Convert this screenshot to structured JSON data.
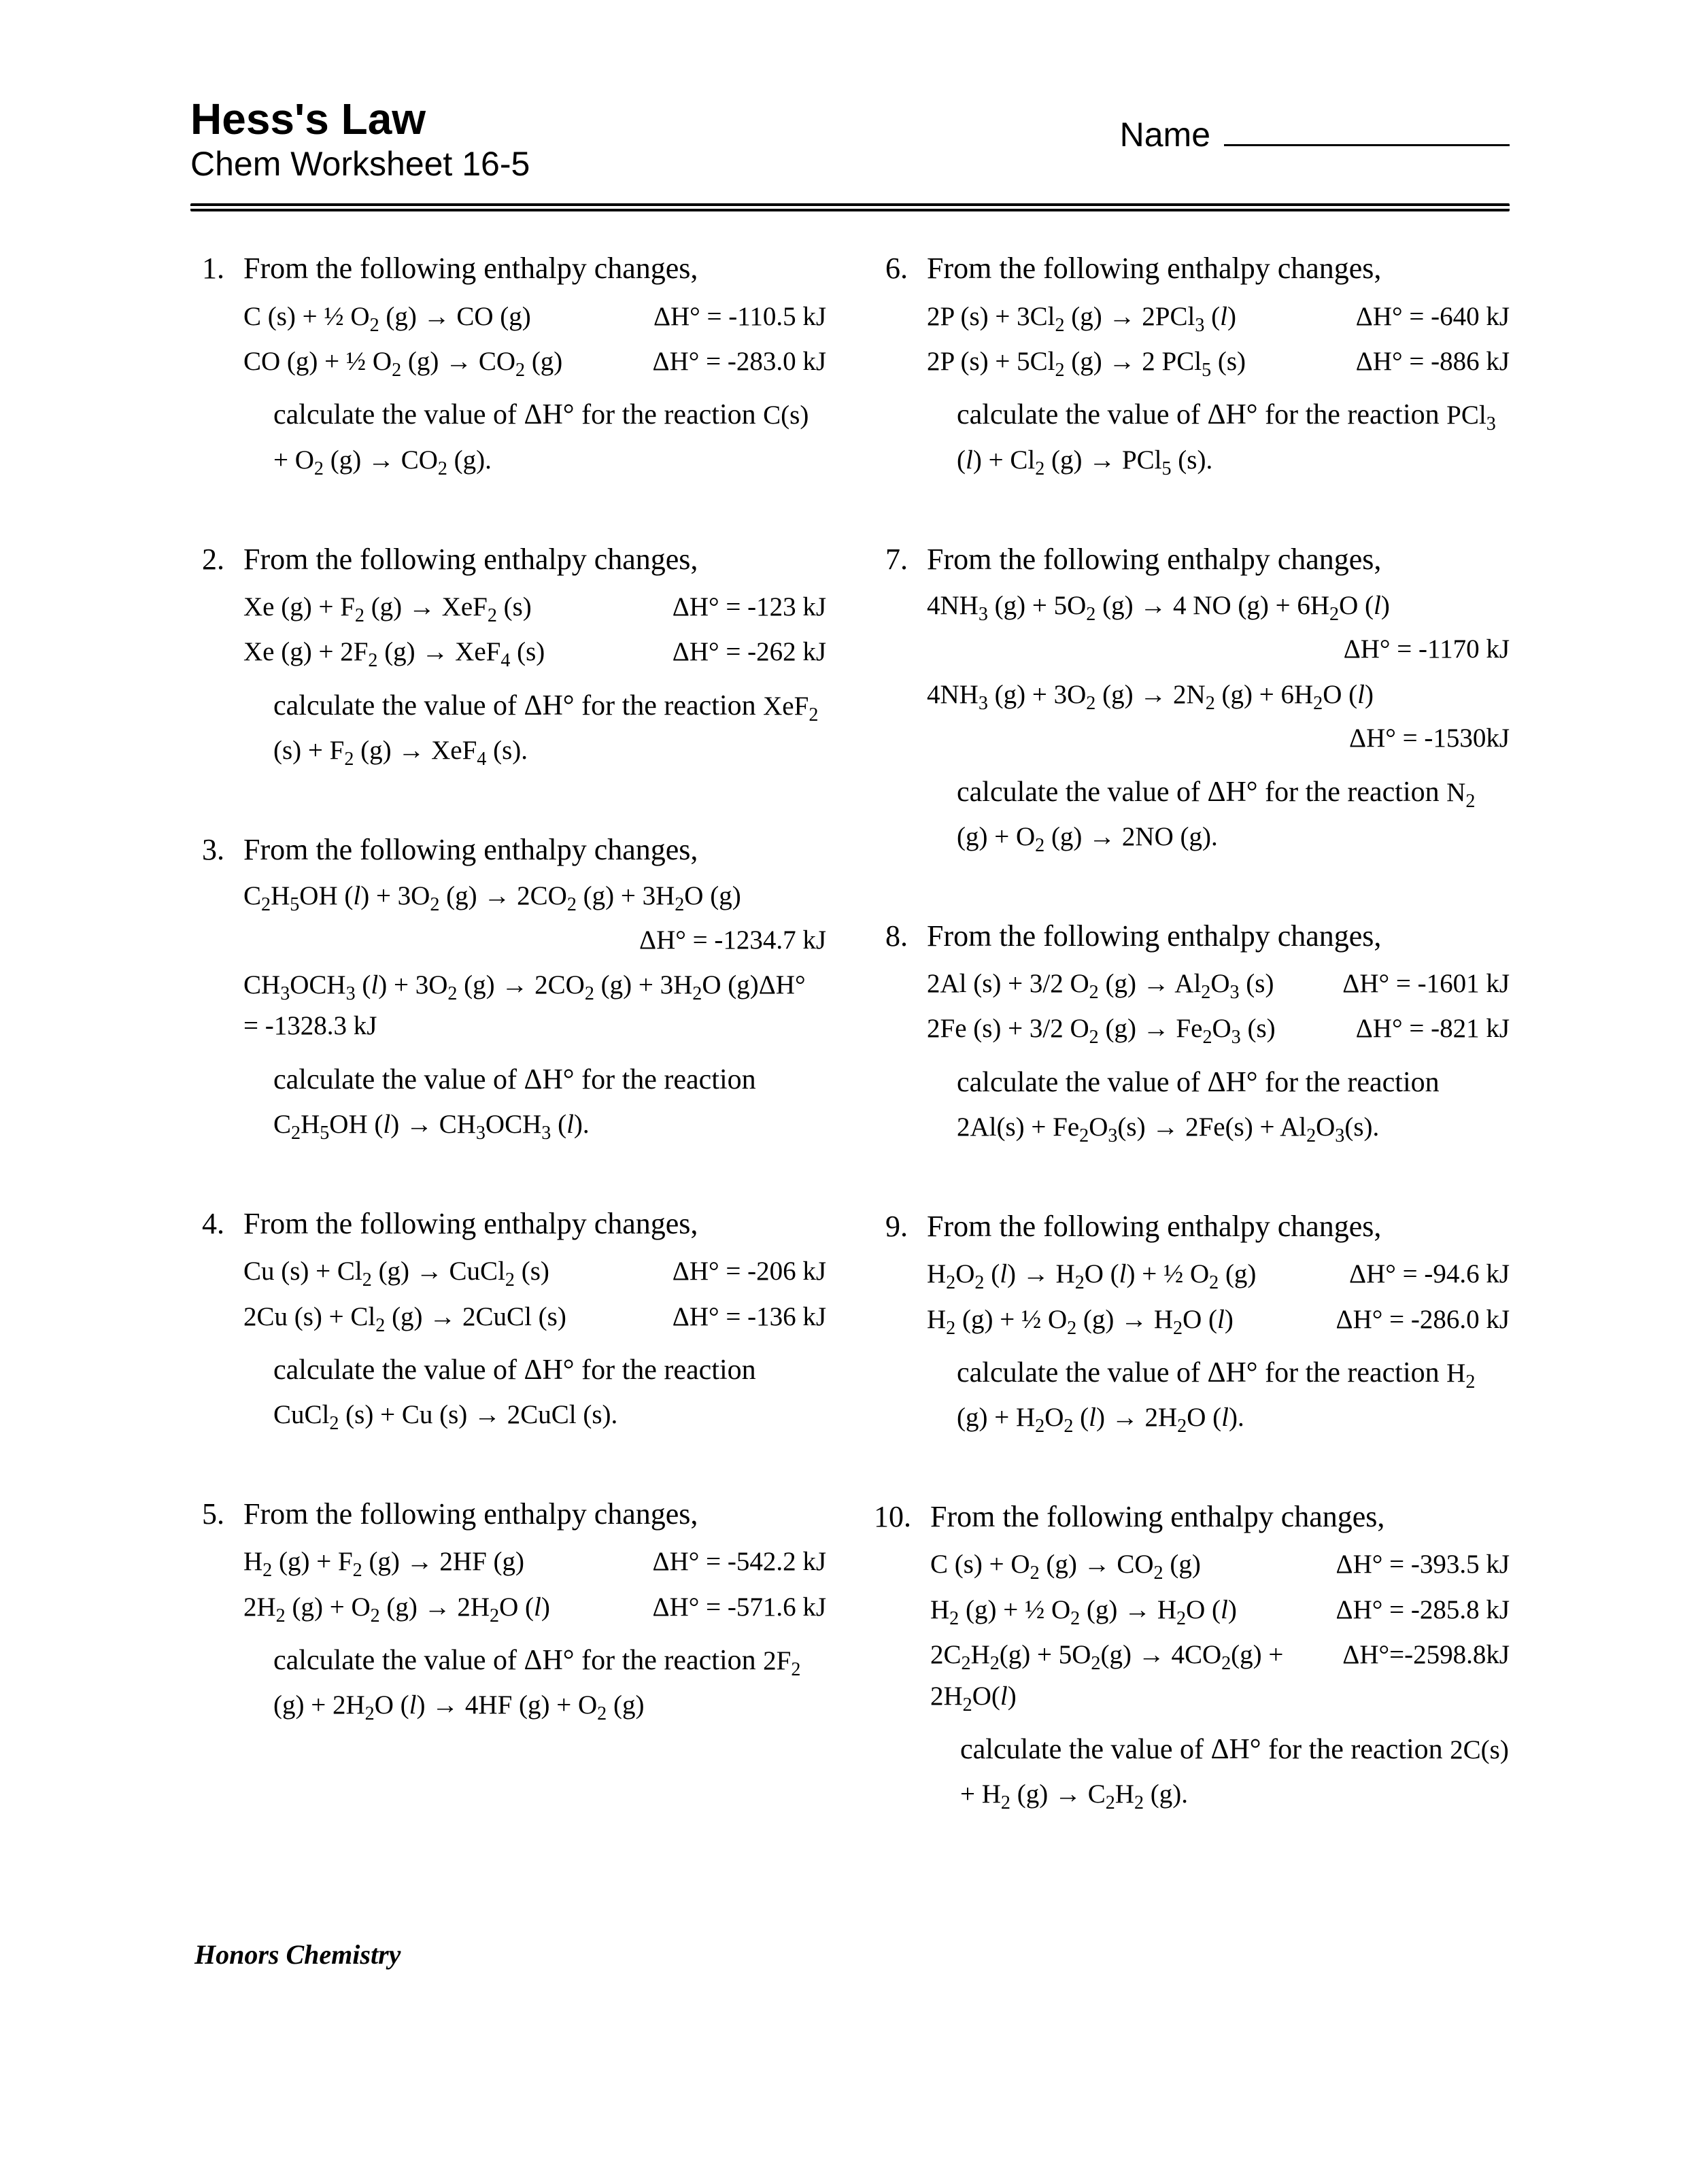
{
  "header": {
    "title": "Hess's Law",
    "subtitle": "Chem Worksheet 16-5",
    "name_label": "Name"
  },
  "footer": "Honors Chemistry",
  "intro": "From the following enthalpy changes,",
  "calc_prefix": "calculate the value of ΔH° for the reaction ",
  "problems_left": [
    {
      "num": "1.",
      "equations": [
        {
          "rxn": "C (s) + ½ O<sub>2</sub> (g) → CO (g)",
          "dh": "ΔH° = -110.5 kJ"
        },
        {
          "rxn": "CO (g) + ½ O<sub>2</sub> (g) → CO<sub>2</sub> (g)",
          "dh": "ΔH° = -283.0 kJ"
        }
      ],
      "target": "C(s) + O<sub>2</sub> (g) → CO<sub>2</sub> (g)."
    },
    {
      "num": "2.",
      "equations": [
        {
          "rxn": "Xe (g) + F<sub>2</sub> (g) → XeF<sub>2</sub> (s)",
          "dh": "ΔH° = -123 kJ"
        },
        {
          "rxn": "Xe (g) + 2F<sub>2</sub> (g) → XeF<sub>4</sub> (s)",
          "dh": "ΔH° = -262 kJ"
        }
      ],
      "target": "XeF<sub>2</sub> (s) + F<sub>2</sub> (g) → XeF<sub>4</sub> (s)."
    },
    {
      "num": "3.",
      "equations_stacked": [
        {
          "rxn": "C<sub>2</sub>H<sub>5</sub>OH (<i>l</i>) + 3O<sub>2</sub> (g) → 2CO<sub>2</sub> (g) + 3H<sub>2</sub>O (g)",
          "dh": "ΔH° = -1234.7 kJ"
        },
        {
          "rxn": "CH<sub>3</sub>OCH<sub>3</sub> (<i>l</i>) + 3O<sub>2</sub> (g) → 2CO<sub>2</sub> (g) + 3H<sub>2</sub>O (g)ΔH° = -1328.3 kJ",
          "dh": ""
        }
      ],
      "target": "C<sub>2</sub>H<sub>5</sub>OH (<i>l</i>) → CH<sub>3</sub>OCH<sub>3</sub> (<i>l</i>)."
    },
    {
      "num": "4.",
      "equations": [
        {
          "rxn": "Cu (s) + Cl<sub>2</sub> (g) → CuCl<sub>2</sub> (s)",
          "dh": "ΔH° = -206 kJ"
        },
        {
          "rxn": "2Cu (s) + Cl<sub>2</sub> (g) → 2CuCl (s)",
          "dh": "ΔH° = -136 kJ"
        }
      ],
      "target": "CuCl<sub>2</sub> (s) + Cu (s) → 2CuCl (s)."
    },
    {
      "num": "5.",
      "equations": [
        {
          "rxn": "H<sub>2</sub> (g) + F<sub>2</sub> (g) → 2HF (g)",
          "dh": "ΔH° = -542.2 kJ"
        },
        {
          "rxn": "2H<sub>2</sub> (g) + O<sub>2</sub> (g) → 2H<sub>2</sub>O (<i>l</i>)",
          "dh": "ΔH° = -571.6 kJ"
        }
      ],
      "target": "2F<sub>2</sub> (g) + 2H<sub>2</sub>O (<i>l</i>) → 4HF (g) + O<sub>2</sub> (g)"
    }
  ],
  "problems_right": [
    {
      "num": "6.",
      "equations": [
        {
          "rxn": "2P (s) + 3Cl<sub>2</sub> (g) → 2PCl<sub>3</sub> (<i>l</i>)",
          "dh": "ΔH° = -640 kJ"
        },
        {
          "rxn": "2P (s) + 5Cl<sub>2</sub> (g) → 2 PCl<sub>5</sub> (s)",
          "dh": "ΔH° = -886 kJ"
        }
      ],
      "target": "PCl<sub>3</sub> (<i>l</i>) + Cl<sub>2</sub> (g) → PCl<sub>5</sub> (s)."
    },
    {
      "num": "7.",
      "equations_stacked": [
        {
          "rxn": "4NH<sub>3</sub> (g) + 5O<sub>2</sub> (g) → 4 NO (g) + 6H<sub>2</sub>O (<i>l</i>)",
          "dh": "ΔH° = -1170 kJ"
        },
        {
          "rxn": "4NH<sub>3</sub> (g) + 3O<sub>2</sub> (g) → 2N<sub>2</sub> (g) + 6H<sub>2</sub>O (<i>l</i>)",
          "dh": "ΔH° = -1530kJ"
        }
      ],
      "target": "N<sub>2</sub> (g) + O<sub>2</sub> (g) → 2NO (g)."
    },
    {
      "num": "8.",
      "equations": [
        {
          "rxn": "2Al (s) + 3/2 O<sub>2</sub> (g) → Al<sub>2</sub>O<sub>3</sub> (s)",
          "dh": "ΔH° = -1601 kJ"
        },
        {
          "rxn": "2Fe (s) + 3/2 O<sub>2</sub> (g) → Fe<sub>2</sub>O<sub>3</sub> (s)",
          "dh": "ΔH° = -821 kJ"
        }
      ],
      "target": "2Al(s) + Fe<sub>2</sub>O<sub>3</sub>(s) → 2Fe(s) + Al<sub>2</sub>O<sub>3</sub>(s)."
    },
    {
      "num": "9.",
      "equations": [
        {
          "rxn": "H<sub>2</sub>O<sub>2</sub> (<i>l</i>) → H<sub>2</sub>O (<i>l</i>) + ½ O<sub>2</sub> (g)",
          "dh": "ΔH° = -94.6 kJ"
        },
        {
          "rxn": "H<sub>2</sub> (g) + ½ O<sub>2</sub> (g) → H<sub>2</sub>O (<i>l</i>)",
          "dh": "ΔH° = -286.0 kJ"
        }
      ],
      "target": "H<sub>2</sub> (g) + H<sub>2</sub>O<sub>2</sub> (<i>l</i>) → 2H<sub>2</sub>O (<i>l</i>)."
    },
    {
      "num": "10.",
      "equations": [
        {
          "rxn": "C (s) + O<sub>2</sub> (g) → CO<sub>2</sub> (g)",
          "dh": "ΔH° = -393.5 kJ"
        },
        {
          "rxn": "H<sub>2</sub> (g) + ½ O<sub>2</sub> (g) → H<sub>2</sub>O (<i>l</i>)",
          "dh": "ΔH° = -285.8 kJ"
        },
        {
          "rxn": "2C<sub>2</sub>H<sub>2</sub>(g) + 5O<sub>2</sub>(g) → 4CO<sub>2</sub>(g) + 2H<sub>2</sub>O(<i>l</i>)",
          "dh": "ΔH°=-2598.8kJ"
        }
      ],
      "target": "2C(s) + H<sub>2</sub> (g) → C<sub>2</sub>H<sub>2</sub> (g)."
    }
  ]
}
